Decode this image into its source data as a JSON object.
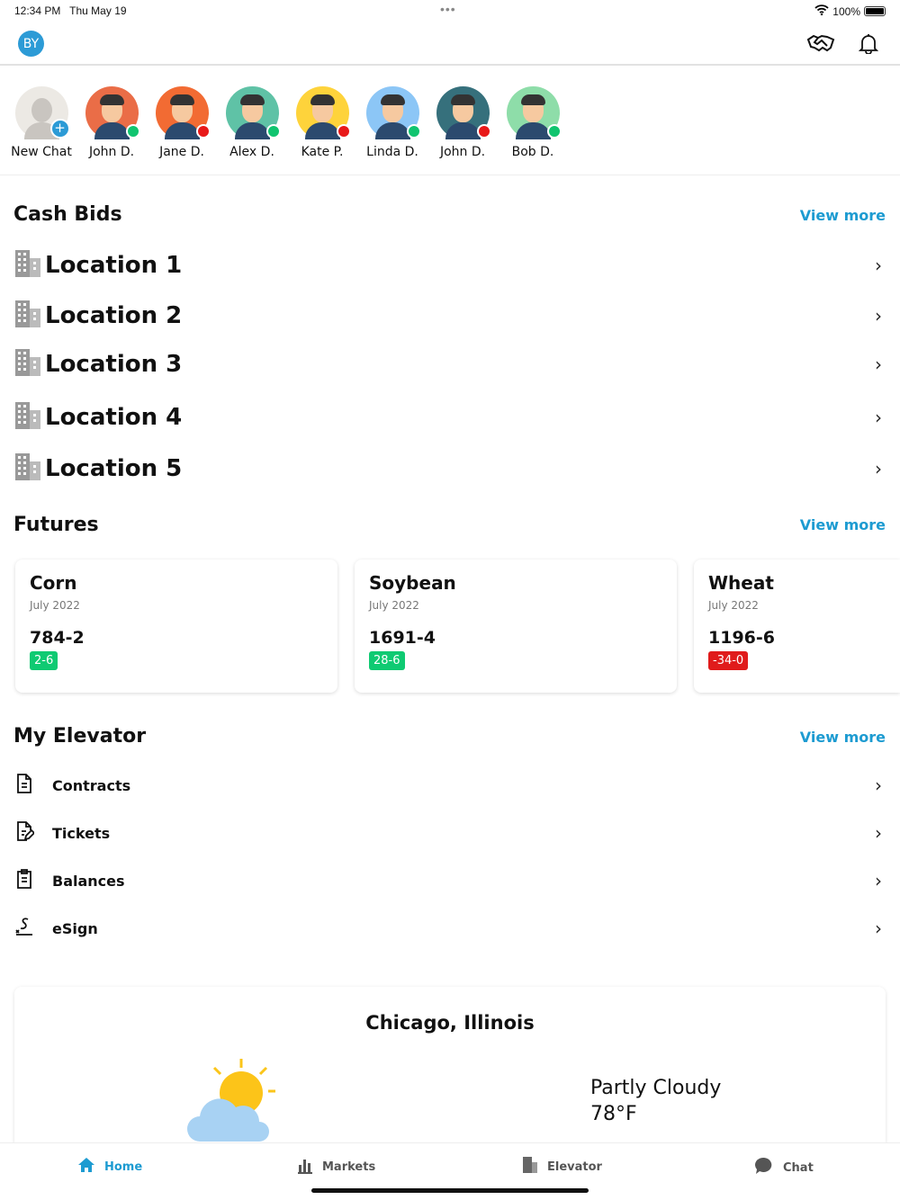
{
  "status": {
    "time": "12:34 PM",
    "date": "Thu May 19",
    "battery": "100%"
  },
  "header": {
    "user_initials": "BY"
  },
  "chats": [
    {
      "name": "New Chat",
      "bg": "#ece9e4",
      "status": null
    },
    {
      "name": "John D.",
      "bg": "#ea6d47",
      "status": "#10c46f"
    },
    {
      "name": "Jane D.",
      "bg": "#f26b33",
      "status": "#e81919"
    },
    {
      "name": "Alex D.",
      "bg": "#5fc2a6",
      "status": "#10c46f"
    },
    {
      "name": "Kate P.",
      "bg": "#fed33b",
      "status": "#e81919"
    },
    {
      "name": "Linda D.",
      "bg": "#8cc6f6",
      "status": "#10c46f"
    },
    {
      "name": "John D.",
      "bg": "#36707c",
      "status": "#e81919"
    },
    {
      "name": "Bob D.",
      "bg": "#8edda9",
      "status": "#10c46f"
    }
  ],
  "cash_bids": {
    "title": "Cash Bids",
    "view_more": "View more",
    "locations": [
      "Location 1",
      "Location 2",
      "Location 3",
      "Location 4",
      "Location 5"
    ]
  },
  "futures": {
    "title": "Futures",
    "view_more": "View more",
    "items": [
      {
        "name": "Corn",
        "month": "July 2022",
        "price": "784-2",
        "change": "2-6",
        "color": "#0fca72"
      },
      {
        "name": "Soybean",
        "month": "July 2022",
        "price": "1691-4",
        "change": "28-6",
        "color": "#0fca72"
      },
      {
        "name": "Wheat",
        "month": "July 2022",
        "price": "1196-6",
        "change": "-34-0",
        "color": "#e01b1b"
      }
    ]
  },
  "elevator": {
    "title": "My Elevator",
    "view_more": "View more",
    "items": [
      {
        "label": "Contracts",
        "icon": "document-icon"
      },
      {
        "label": "Tickets",
        "icon": "edit-document-icon"
      },
      {
        "label": "Balances",
        "icon": "clipboard-icon"
      },
      {
        "label": "eSign",
        "icon": "signature-icon"
      }
    ]
  },
  "weather": {
    "city": "Chicago, Illinois",
    "condition": "Partly Cloudy",
    "temp": "78°F"
  },
  "tabs": [
    {
      "label": "Home",
      "icon": "home-icon"
    },
    {
      "label": "Markets",
      "icon": "bar-chart-icon"
    },
    {
      "label": "Elevator",
      "icon": "building-icon"
    },
    {
      "label": "Chat",
      "icon": "chat-bubble-icon"
    }
  ],
  "colors": {
    "accent": "#1d9bd1",
    "online": "#10c46f",
    "offline": "#e81919"
  }
}
